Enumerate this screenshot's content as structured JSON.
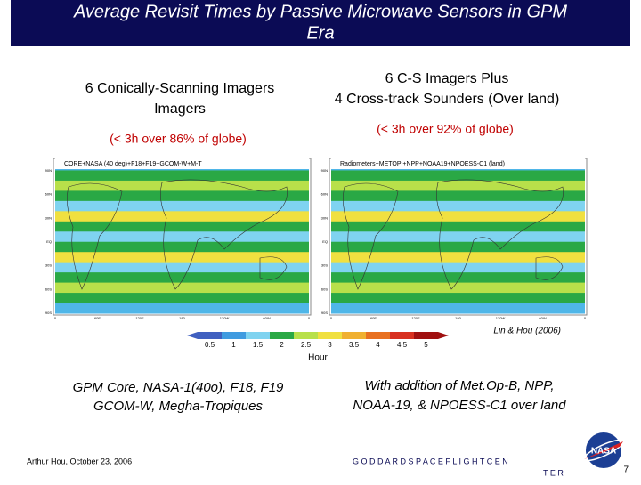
{
  "slide": {
    "title": "Average Revisit Times by Passive Microwave Sensors in GPM Era",
    "left_heading": "6 Conically-Scanning Imagers",
    "left_coverage": "(< 3h over 86% of globe)",
    "right_heading_1": "6 C-S Imagers Plus",
    "right_heading_2": "4 Cross-track Sounders (Over land)",
    "right_coverage": "(< 3h over 92% of globe)",
    "left_map_title": "CORE+NASA (40 deg)+F18+F19+GCOM-W+M-T",
    "right_map_title": "Radiometers+METOP +NPP+NOAA19+NPOESS-C1 (land)",
    "lat_labels": [
      "90N",
      "60N",
      "30N",
      "EQ",
      "30S",
      "60S",
      "90S"
    ],
    "lon_labels": [
      "0",
      "60E",
      "120E",
      "180",
      "120W",
      "60W",
      "0"
    ],
    "colorbar_ticks": [
      0.5,
      1,
      1.5,
      2,
      2.5,
      3,
      3.5,
      4,
      4.5,
      5
    ],
    "colorbar_label": "Hour",
    "citation": "Lin & Hou (2006)",
    "left_caption_1": "GPM Core, NASA-1(40o), F18, F19",
    "left_caption_2": "GCOM-W, Megha-Tropiques",
    "right_caption_1": "With addition of Met.Op-B, NPP,",
    "right_caption_2": "NOAA-19, & NPOESS-C1 over land",
    "footer_author": "Arthur Hou, October 23, 2006",
    "footer_center_1": "G O D D A R D   S P A C E   F L I G H T   C E N",
    "footer_center_2": "T E R",
    "logo": "NASA",
    "page_number": "7"
  }
}
